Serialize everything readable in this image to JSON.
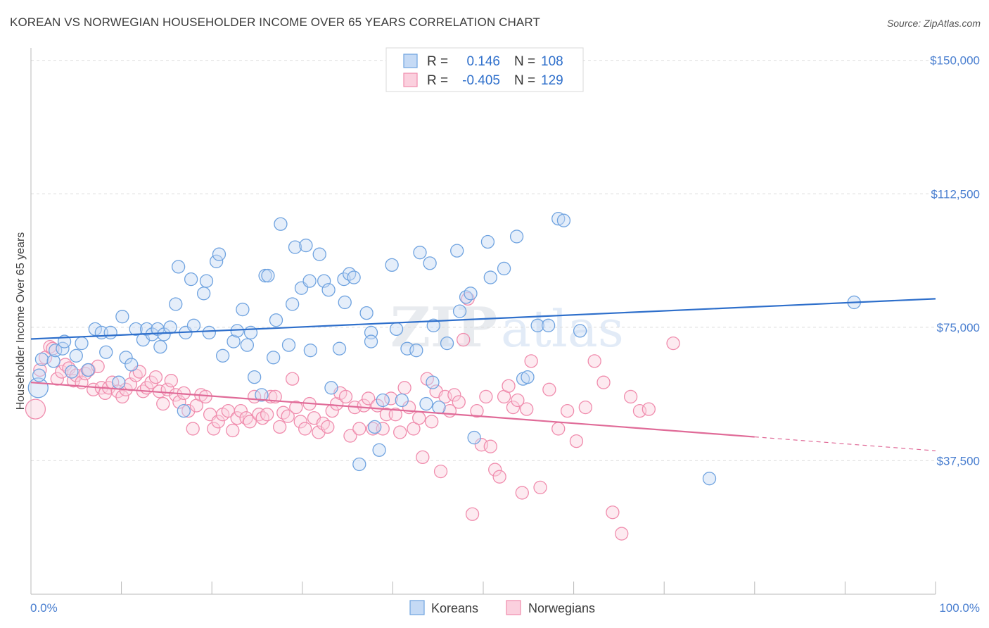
{
  "header": {
    "title": "KOREAN VS NORWEGIAN HOUSEHOLDER INCOME OVER 65 YEARS CORRELATION CHART",
    "source": "Source: ZipAtlas.com"
  },
  "watermark": {
    "part1": "ZIP",
    "part2": "atlas"
  },
  "legend": {
    "rows": [
      {
        "r_label": "R =",
        "r_value": "0.146",
        "n_label": "N =",
        "n_value": "108",
        "color": "#6fa3e0"
      },
      {
        "r_label": "R =",
        "r_value": "-0.405",
        "n_label": "N =",
        "n_value": "129",
        "color": "#f08cad"
      }
    ]
  },
  "bottom_legend": {
    "items": [
      {
        "label": "Koreans",
        "color": "#6fa3e0"
      },
      {
        "label": "Norwegians",
        "color": "#f08cad"
      }
    ]
  },
  "chart_data": {
    "type": "scatter",
    "title": "KOREAN VS NORWEGIAN HOUSEHOLDER INCOME OVER 65 YEARS CORRELATION CHART",
    "xlabel": "",
    "ylabel": "Householder Income Over 65 years",
    "x_tick_labels": [
      "0.0%",
      "100.0%"
    ],
    "y_tick_labels": [
      "$150,000",
      "$112,500",
      "$75,000",
      "$37,500"
    ],
    "y_ticks": [
      150000,
      112500,
      75000,
      37500
    ],
    "xlim": [
      0,
      100
    ],
    "ylim": [
      0,
      153500
    ],
    "grid": true,
    "legend_position": "top-center",
    "colors": {
      "koreans": "#6fa3e0",
      "norwegians": "#f08cad",
      "koreans_line": "#2e6fcb",
      "norwegians_line": "#e06b98"
    },
    "series": [
      {
        "name": "Koreans",
        "color": "#6fa3e0",
        "trend": {
          "x": [
            0,
            100
          ],
          "y": [
            71700,
            83000
          ]
        },
        "points": [
          [
            0.8,
            58000
          ],
          [
            0.9,
            61500
          ],
          [
            1.2,
            66000
          ],
          [
            2.5,
            65500
          ],
          [
            2.7,
            68500
          ],
          [
            3.5,
            69000
          ],
          [
            3.7,
            71000
          ],
          [
            4.5,
            62500
          ],
          [
            5.0,
            67000
          ],
          [
            5.6,
            70500
          ],
          [
            6.3,
            63000
          ],
          [
            7.1,
            74500
          ],
          [
            7.8,
            73500
          ],
          [
            8.3,
            68000
          ],
          [
            8.8,
            73500
          ],
          [
            9.7,
            59500
          ],
          [
            10.1,
            78000
          ],
          [
            10.5,
            66500
          ],
          [
            11.1,
            64500
          ],
          [
            11.6,
            74500
          ],
          [
            12.4,
            71500
          ],
          [
            12.8,
            74500
          ],
          [
            13.4,
            73000
          ],
          [
            14.0,
            74500
          ],
          [
            14.3,
            69500
          ],
          [
            14.7,
            73000
          ],
          [
            15.4,
            75000
          ],
          [
            16.0,
            81500
          ],
          [
            16.3,
            92000
          ],
          [
            16.9,
            51500
          ],
          [
            17.1,
            73500
          ],
          [
            17.7,
            88500
          ],
          [
            18.0,
            75500
          ],
          [
            19.1,
            84500
          ],
          [
            19.4,
            88000
          ],
          [
            19.7,
            73500
          ],
          [
            20.5,
            93500
          ],
          [
            20.8,
            95500
          ],
          [
            21.2,
            67000
          ],
          [
            22.4,
            71000
          ],
          [
            22.8,
            74000
          ],
          [
            23.4,
            80000
          ],
          [
            23.9,
            70000
          ],
          [
            24.3,
            73500
          ],
          [
            24.7,
            61000
          ],
          [
            25.5,
            56000
          ],
          [
            25.9,
            89500
          ],
          [
            26.2,
            89500
          ],
          [
            26.8,
            66500
          ],
          [
            27.1,
            77000
          ],
          [
            27.6,
            104000
          ],
          [
            28.5,
            70000
          ],
          [
            28.9,
            81500
          ],
          [
            29.2,
            97500
          ],
          [
            29.9,
            86000
          ],
          [
            30.4,
            98000
          ],
          [
            30.8,
            88000
          ],
          [
            30.9,
            68500
          ],
          [
            31.9,
            95500
          ],
          [
            32.4,
            88000
          ],
          [
            32.9,
            85500
          ],
          [
            33.2,
            58000
          ],
          [
            34.1,
            69000
          ],
          [
            34.6,
            88500
          ],
          [
            34.7,
            82000
          ],
          [
            35.2,
            90000
          ],
          [
            35.7,
            89000
          ],
          [
            36.3,
            36500
          ],
          [
            37.1,
            79000
          ],
          [
            37.6,
            73500
          ],
          [
            37.6,
            71000
          ],
          [
            38.0,
            47000
          ],
          [
            38.5,
            40500
          ],
          [
            38.9,
            54500
          ],
          [
            39.9,
            92500
          ],
          [
            40.4,
            74500
          ],
          [
            41.0,
            54500
          ],
          [
            41.6,
            69000
          ],
          [
            42.6,
            68500
          ],
          [
            43.0,
            96000
          ],
          [
            43.7,
            53500
          ],
          [
            44.1,
            93000
          ],
          [
            44.4,
            59500
          ],
          [
            44.5,
            75500
          ],
          [
            45.1,
            52500
          ],
          [
            46.0,
            70500
          ],
          [
            47.1,
            96500
          ],
          [
            47.4,
            79500
          ],
          [
            48.1,
            83500
          ],
          [
            48.6,
            84500
          ],
          [
            49.0,
            44000
          ],
          [
            50.5,
            99000
          ],
          [
            50.8,
            89000
          ],
          [
            52.3,
            91500
          ],
          [
            53.7,
            100500
          ],
          [
            54.4,
            60500
          ],
          [
            54.9,
            61000
          ],
          [
            56.0,
            75500
          ],
          [
            57.2,
            75500
          ],
          [
            58.3,
            105500
          ],
          [
            58.9,
            105000
          ],
          [
            60.7,
            74000
          ],
          [
            75.0,
            32500
          ],
          [
            91.0,
            82000
          ]
        ]
      },
      {
        "name": "Norwegians",
        "color": "#f08cad",
        "trend": {
          "x": [
            0,
            80
          ],
          "y": [
            59500,
            44200
          ]
        },
        "trend_dashed": {
          "x": [
            80,
            100
          ],
          "y": [
            44200,
            40300
          ]
        },
        "points": [
          [
            0.5,
            52000
          ],
          [
            1.0,
            63000
          ],
          [
            1.6,
            66500
          ],
          [
            2.1,
            69500
          ],
          [
            2.4,
            69000
          ],
          [
            2.9,
            60500
          ],
          [
            3.4,
            62500
          ],
          [
            3.8,
            64500
          ],
          [
            4.2,
            63500
          ],
          [
            4.7,
            60000
          ],
          [
            5.0,
            61500
          ],
          [
            5.6,
            59500
          ],
          [
            6.0,
            62000
          ],
          [
            6.4,
            63000
          ],
          [
            6.9,
            57500
          ],
          [
            7.4,
            64000
          ],
          [
            7.8,
            58000
          ],
          [
            8.2,
            56500
          ],
          [
            8.6,
            58000
          ],
          [
            9.0,
            59500
          ],
          [
            9.6,
            57000
          ],
          [
            10.1,
            55500
          ],
          [
            10.5,
            57500
          ],
          [
            11.0,
            59000
          ],
          [
            11.6,
            61500
          ],
          [
            12.0,
            62500
          ],
          [
            12.4,
            57000
          ],
          [
            12.8,
            58000
          ],
          [
            13.3,
            59500
          ],
          [
            13.8,
            61000
          ],
          [
            14.2,
            57000
          ],
          [
            14.6,
            53500
          ],
          [
            15.1,
            57500
          ],
          [
            15.5,
            60000
          ],
          [
            16.0,
            56000
          ],
          [
            16.4,
            54000
          ],
          [
            16.9,
            56500
          ],
          [
            17.4,
            51500
          ],
          [
            17.9,
            46500
          ],
          [
            18.3,
            53000
          ],
          [
            18.8,
            56000
          ],
          [
            19.3,
            55500
          ],
          [
            19.8,
            50500
          ],
          [
            20.2,
            46500
          ],
          [
            20.7,
            48500
          ],
          [
            21.2,
            50500
          ],
          [
            21.8,
            51500
          ],
          [
            22.3,
            46000
          ],
          [
            22.8,
            49500
          ],
          [
            23.2,
            51500
          ],
          [
            23.8,
            49500
          ],
          [
            24.2,
            48500
          ],
          [
            24.7,
            55500
          ],
          [
            25.2,
            50500
          ],
          [
            25.6,
            49500
          ],
          [
            26.1,
            50500
          ],
          [
            26.5,
            55500
          ],
          [
            27.0,
            55500
          ],
          [
            27.5,
            47000
          ],
          [
            27.9,
            51000
          ],
          [
            28.4,
            50000
          ],
          [
            28.9,
            60500
          ],
          [
            29.3,
            52500
          ],
          [
            29.8,
            48500
          ],
          [
            30.3,
            46500
          ],
          [
            30.8,
            53500
          ],
          [
            31.3,
            49500
          ],
          [
            31.8,
            45500
          ],
          [
            32.3,
            48000
          ],
          [
            32.8,
            47000
          ],
          [
            33.3,
            51500
          ],
          [
            33.8,
            53500
          ],
          [
            34.2,
            56500
          ],
          [
            34.8,
            55500
          ],
          [
            35.3,
            44500
          ],
          [
            35.8,
            52500
          ],
          [
            36.3,
            46500
          ],
          [
            36.8,
            53000
          ],
          [
            37.3,
            55000
          ],
          [
            37.8,
            46500
          ],
          [
            38.3,
            53000
          ],
          [
            38.9,
            46500
          ],
          [
            39.3,
            50500
          ],
          [
            39.8,
            55000
          ],
          [
            40.3,
            50500
          ],
          [
            40.8,
            45500
          ],
          [
            41.3,
            58000
          ],
          [
            41.8,
            52500
          ],
          [
            42.3,
            46500
          ],
          [
            42.9,
            49500
          ],
          [
            43.3,
            38500
          ],
          [
            43.8,
            60500
          ],
          [
            44.3,
            48500
          ],
          [
            44.8,
            57000
          ],
          [
            45.3,
            34500
          ],
          [
            45.8,
            55500
          ],
          [
            46.3,
            51500
          ],
          [
            46.8,
            56000
          ],
          [
            47.3,
            54000
          ],
          [
            47.8,
            71500
          ],
          [
            48.3,
            83000
          ],
          [
            48.8,
            22500
          ],
          [
            49.3,
            51500
          ],
          [
            49.8,
            42000
          ],
          [
            50.3,
            55500
          ],
          [
            50.8,
            41500
          ],
          [
            51.3,
            35000
          ],
          [
            51.8,
            33000
          ],
          [
            52.3,
            55500
          ],
          [
            52.8,
            58500
          ],
          [
            53.3,
            52500
          ],
          [
            53.8,
            54500
          ],
          [
            54.3,
            28500
          ],
          [
            54.8,
            52000
          ],
          [
            55.3,
            65500
          ],
          [
            56.3,
            30000
          ],
          [
            57.3,
            57500
          ],
          [
            58.3,
            46500
          ],
          [
            59.3,
            51500
          ],
          [
            60.3,
            43000
          ],
          [
            61.3,
            52500
          ],
          [
            62.3,
            65500
          ],
          [
            63.3,
            59500
          ],
          [
            64.3,
            23000
          ],
          [
            65.3,
            17000
          ],
          [
            66.3,
            55500
          ],
          [
            67.3,
            51500
          ],
          [
            68.3,
            52000
          ],
          [
            71.0,
            70500
          ]
        ]
      }
    ]
  }
}
